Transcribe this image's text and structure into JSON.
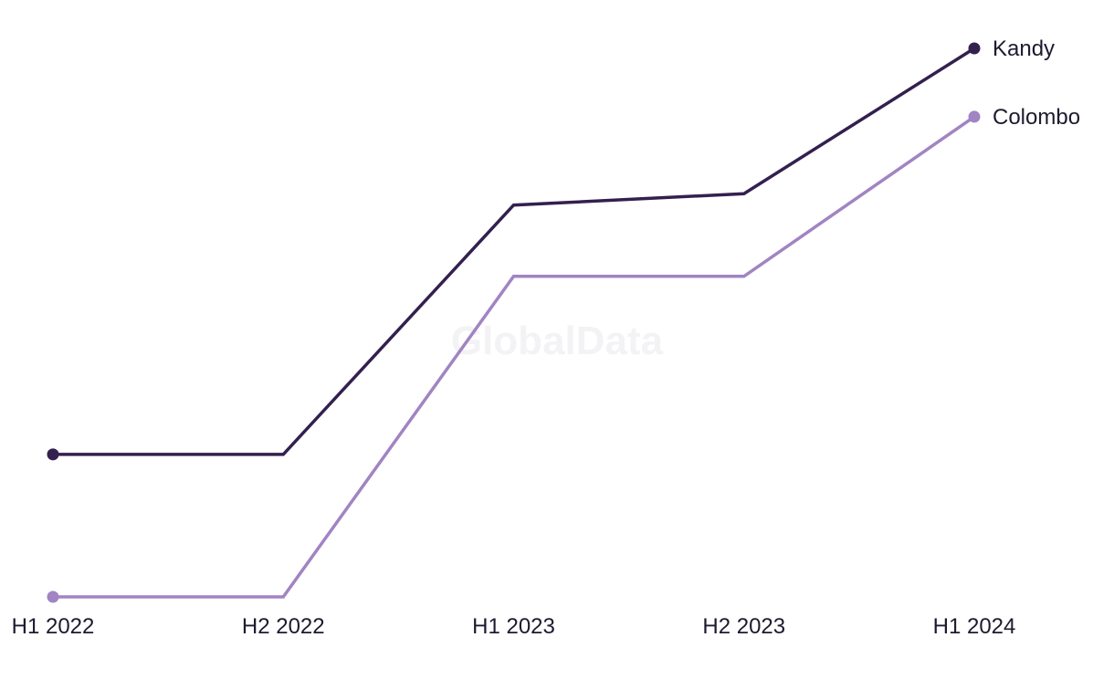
{
  "watermark": "GlobalData",
  "chart_data": {
    "type": "line",
    "categories": [
      "H1 2022",
      "H2 2022",
      "H1 2023",
      "H2 2023",
      "H1 2024"
    ],
    "series": [
      {
        "name": "Kandy",
        "color": "#33204f",
        "values": [
          1.0,
          1.0,
          2.75,
          2.83,
          3.85
        ]
      },
      {
        "name": "Colombo",
        "color": "#a184c2",
        "values": [
          0.0,
          0.0,
          2.25,
          2.25,
          3.37
        ]
      }
    ],
    "ylim": [
      0,
      4
    ],
    "grid": false,
    "legend": "inline-end-labels"
  }
}
